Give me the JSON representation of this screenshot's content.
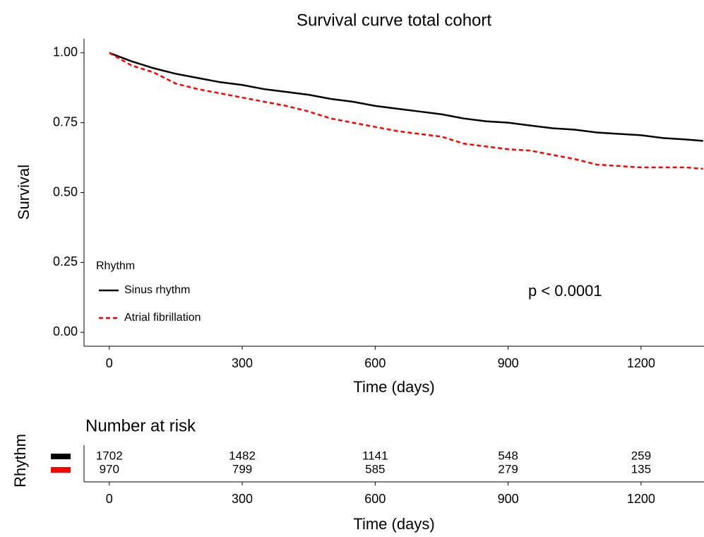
{
  "chart_data": [
    {
      "type": "line",
      "title": "Survival curve total cohort",
      "x_label": "Time (days)",
      "y_label": "Survival",
      "legend_title": "Rhythm",
      "legend_position": "bottom-left",
      "annotation": "p < 0.0001",
      "x": [
        0,
        50,
        100,
        150,
        200,
        250,
        300,
        350,
        400,
        450,
        500,
        550,
        600,
        650,
        700,
        750,
        800,
        850,
        900,
        950,
        1000,
        1050,
        1100,
        1150,
        1200,
        1250,
        1300,
        1340
      ],
      "series": [
        {
          "name": "Sinus rhythm",
          "color": "#000000",
          "dash": "solid",
          "values": [
            1.0,
            0.97,
            0.945,
            0.925,
            0.91,
            0.895,
            0.885,
            0.87,
            0.86,
            0.85,
            0.835,
            0.825,
            0.81,
            0.8,
            0.79,
            0.78,
            0.765,
            0.755,
            0.75,
            0.74,
            0.73,
            0.725,
            0.715,
            0.71,
            0.705,
            0.695,
            0.69,
            0.685
          ]
        },
        {
          "name": "Atrial fibrillation",
          "color": "#ff0000",
          "dash": "dashed",
          "values": [
            1.0,
            0.955,
            0.93,
            0.89,
            0.87,
            0.855,
            0.84,
            0.825,
            0.81,
            0.79,
            0.765,
            0.75,
            0.735,
            0.72,
            0.71,
            0.7,
            0.675,
            0.665,
            0.655,
            0.65,
            0.635,
            0.62,
            0.6,
            0.595,
            0.59,
            0.59,
            0.59,
            0.585
          ]
        }
      ],
      "xlim": [
        -57,
        1342
      ],
      "xticks": [
        0,
        300,
        600,
        900,
        1200
      ],
      "ylim": [
        -0.05,
        1.05
      ],
      "yticks": [
        {
          "value": 0,
          "label": "0.00"
        },
        0.25,
        {
          "value": 0.5,
          "label": "0.50"
        },
        0.75,
        {
          "value": 1,
          "label": "1.00"
        }
      ]
    },
    {
      "type": "table",
      "title": "Number at risk",
      "x_label": "Time (days)",
      "y_label": "Rhythm",
      "x": [
        0,
        300,
        600,
        900,
        1200
      ],
      "series": [
        {
          "color": "#000000",
          "values": [
            1702,
            1482,
            1141,
            548,
            259
          ]
        },
        {
          "color": "#ff0000",
          "values": [
            970,
            799,
            585,
            279,
            135
          ]
        }
      ],
      "xlim": [
        -57,
        1342
      ],
      "xticks": [
        0,
        300,
        600,
        900,
        1200
      ]
    }
  ]
}
